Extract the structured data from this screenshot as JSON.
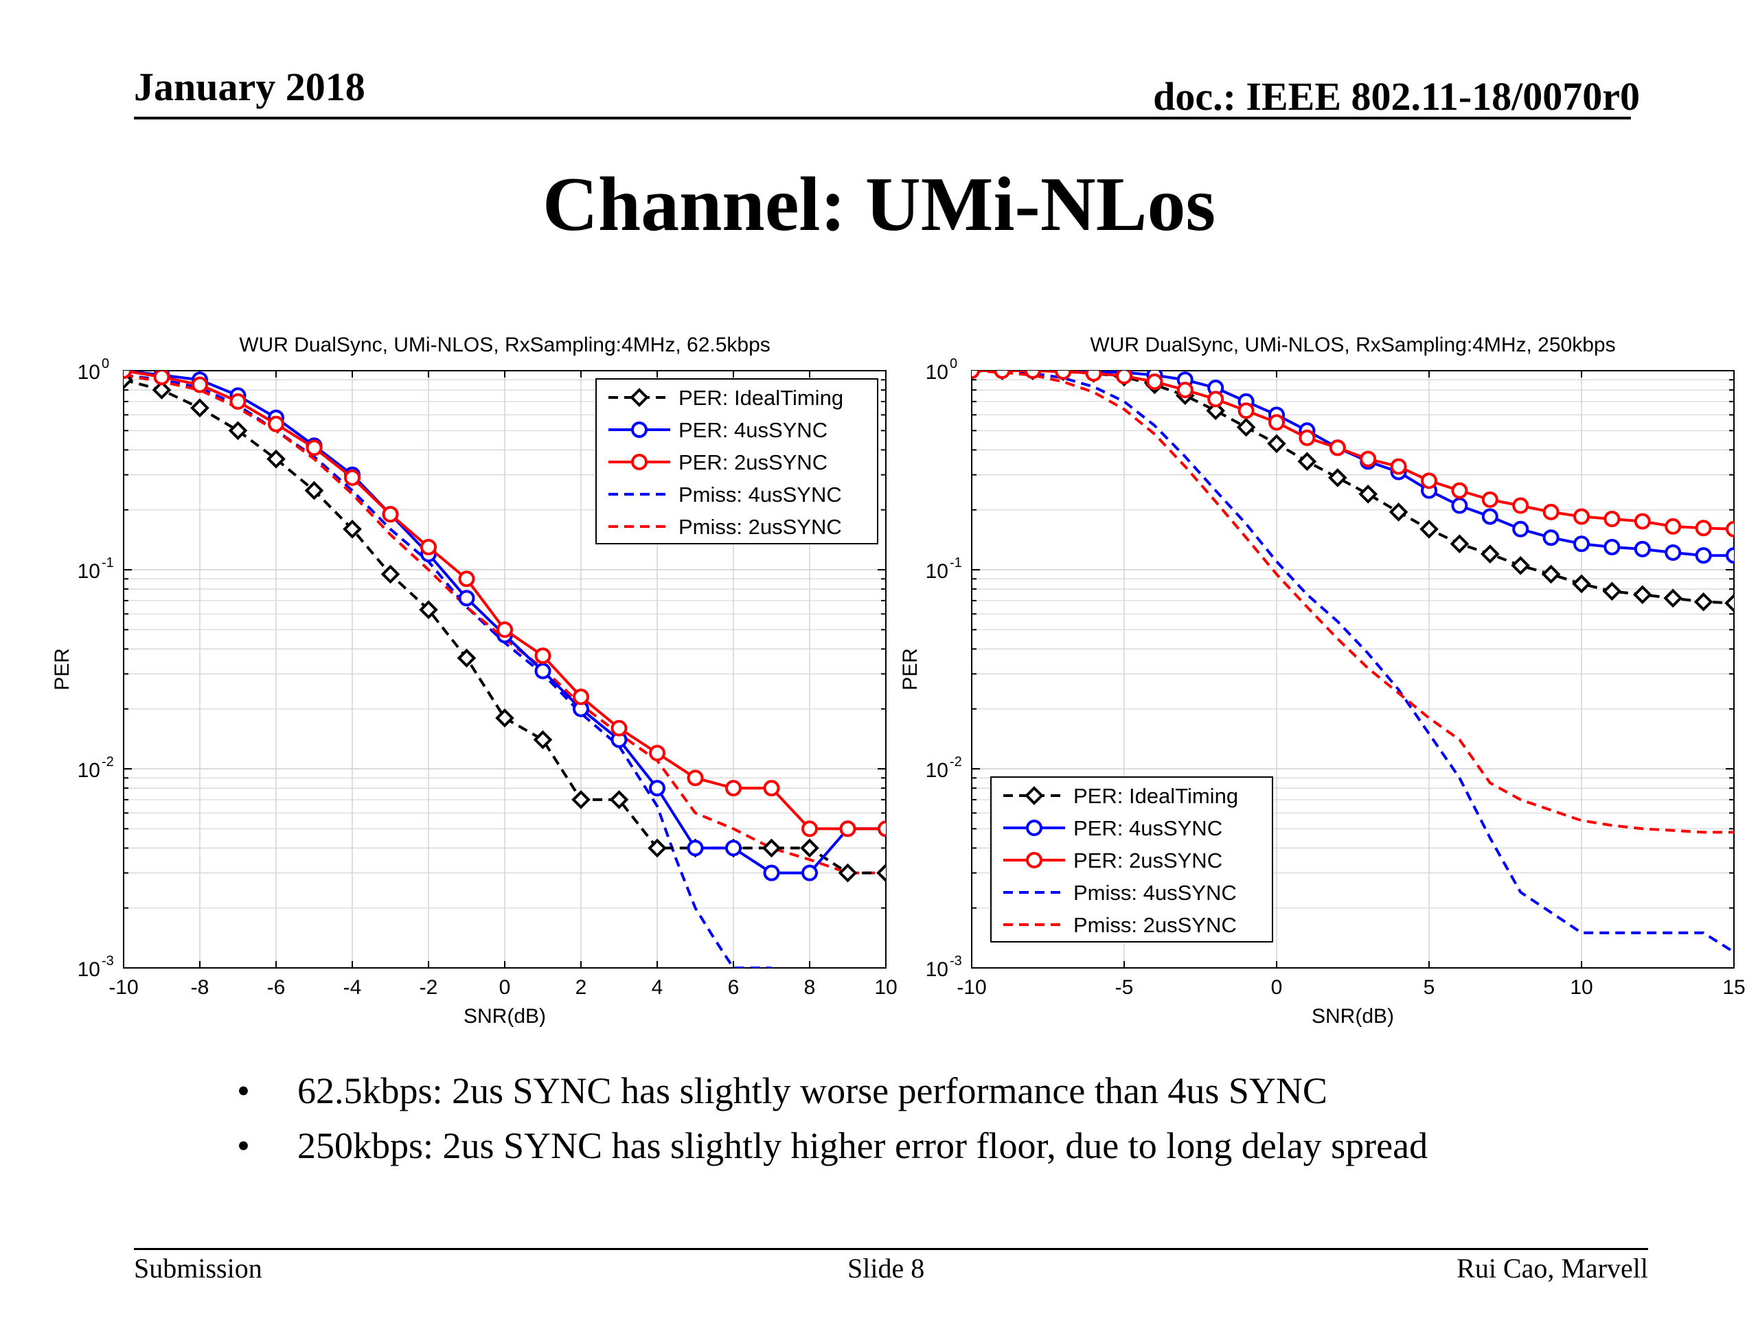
{
  "header": {
    "date": "January 2018",
    "doc": "doc.: IEEE 802.11-18/0070r0"
  },
  "slide_title": "Channel: UMi-NLos",
  "bullets": [
    "62.5kbps: 2us SYNC has slightly worse performance than 4us SYNC",
    "250kbps:  2us SYNC has slightly higher error floor, due to long delay spread"
  ],
  "footer": {
    "left": "Submission",
    "center": "Slide 8",
    "right": "Rui Cao, Marvell"
  },
  "colors": {
    "ideal": "#000000",
    "sync4": "#0000ff",
    "sync2": "#ff0000",
    "grid": "#d4d4d4"
  },
  "chart_data": [
    {
      "type": "line",
      "title": "WUR DualSync, UMi-NLOS, RxSampling:4MHz, 62.5kbps",
      "xlabel": "SNR(dB)",
      "ylabel": "PER",
      "y_scale": "log",
      "xlim": [
        -10,
        10
      ],
      "ylim": [
        0.001,
        1
      ],
      "x_ticks": [
        -10,
        -8,
        -6,
        -4,
        -2,
        0,
        2,
        4,
        6,
        8,
        10
      ],
      "x_tick_labels": [
        "-10",
        "-8",
        "-6",
        "-4",
        "-2",
        "0",
        "2",
        "4",
        "6",
        "8",
        "10"
      ],
      "y_tick_labels": [
        {
          "base": "10",
          "exp": "0"
        },
        {
          "base": "10",
          "exp": "-1"
        },
        {
          "base": "10",
          "exp": "-2"
        },
        {
          "base": "10",
          "exp": "-3"
        }
      ],
      "grid": true,
      "legend_position": "top-right",
      "series": [
        {
          "name": "PER: IdealTiming",
          "color": "#000000",
          "style": "dashed",
          "marker": "diamond",
          "x": [
            -10,
            -9,
            -8,
            -7,
            -6,
            -5,
            -4,
            -3,
            -2,
            -1,
            0,
            1,
            2,
            3,
            4,
            5,
            6,
            7,
            8,
            9,
            10
          ],
          "y": [
            0.9,
            0.8,
            0.65,
            0.5,
            0.36,
            0.25,
            0.16,
            0.095,
            0.063,
            0.036,
            0.018,
            0.014,
            0.007,
            0.007,
            0.004,
            0.004,
            0.004,
            0.004,
            0.004,
            0.003,
            0.003
          ]
        },
        {
          "name": "PER: 4usSYNC",
          "color": "#0000ff",
          "style": "solid",
          "marker": "circle",
          "x": [
            -10,
            -9,
            -8,
            -7,
            -6,
            -5,
            -4,
            -3,
            -2,
            -1,
            0,
            1,
            2,
            3,
            4,
            5,
            6,
            7,
            8,
            9,
            10
          ],
          "y": [
            1.0,
            0.95,
            0.9,
            0.75,
            0.58,
            0.42,
            0.3,
            0.19,
            0.12,
            0.072,
            0.047,
            0.031,
            0.02,
            0.014,
            0.008,
            0.004,
            0.004,
            0.003,
            0.003,
            0.005,
            0.005
          ]
        },
        {
          "name": "PER: 2usSYNC",
          "color": "#ff0000",
          "style": "solid",
          "marker": "circle",
          "x": [
            -10,
            -9,
            -8,
            -7,
            -6,
            -5,
            -4,
            -3,
            -2,
            -1,
            0,
            1,
            2,
            3,
            4,
            5,
            6,
            7,
            8,
            9,
            10
          ],
          "y": [
            1.0,
            0.93,
            0.85,
            0.7,
            0.54,
            0.41,
            0.29,
            0.19,
            0.13,
            0.09,
            0.05,
            0.037,
            0.023,
            0.016,
            0.012,
            0.009,
            0.008,
            0.008,
            0.005,
            0.005,
            0.005
          ]
        },
        {
          "name": "Pmiss: 4usSYNC",
          "color": "#0000ff",
          "style": "dashed",
          "marker": "none",
          "x": [
            -10,
            -9,
            -8,
            -7,
            -6,
            -5,
            -4,
            -3,
            -2,
            -1,
            0,
            1,
            2,
            3,
            4,
            4.5,
            5,
            5.5,
            6,
            6.5,
            7
          ],
          "y": [
            0.95,
            0.9,
            0.82,
            0.67,
            0.5,
            0.37,
            0.25,
            0.16,
            0.11,
            0.065,
            0.043,
            0.03,
            0.019,
            0.013,
            0.0065,
            0.0035,
            0.002,
            0.0014,
            0.001,
            0.001,
            0.001
          ]
        },
        {
          "name": "Pmiss: 2usSYNC",
          "color": "#ff0000",
          "style": "dashed",
          "marker": "none",
          "x": [
            -10,
            -9,
            -8,
            -7,
            -6,
            -5,
            -4,
            -3,
            -2,
            -1,
            0,
            1,
            2,
            3,
            4,
            5,
            6,
            7,
            8,
            9,
            10
          ],
          "y": [
            0.95,
            0.88,
            0.8,
            0.65,
            0.5,
            0.36,
            0.24,
            0.15,
            0.1,
            0.065,
            0.045,
            0.032,
            0.021,
            0.015,
            0.011,
            0.006,
            0.005,
            0.004,
            0.0035,
            0.003,
            0.003
          ]
        }
      ]
    },
    {
      "type": "line",
      "title": "WUR DualSync, UMi-NLOS, RxSampling:4MHz, 250kbps",
      "xlabel": "SNR(dB)",
      "ylabel": "PER",
      "y_scale": "log",
      "xlim": [
        -10,
        15
      ],
      "ylim": [
        0.001,
        1
      ],
      "x_ticks": [
        -10,
        -5,
        0,
        5,
        10,
        15
      ],
      "x_tick_labels": [
        "-10",
        "-5",
        "0",
        "5",
        "10",
        "15"
      ],
      "y_tick_labels": [
        {
          "base": "10",
          "exp": "0"
        },
        {
          "base": "10",
          "exp": "-1"
        },
        {
          "base": "10",
          "exp": "-2"
        },
        {
          "base": "10",
          "exp": "-3"
        }
      ],
      "grid": true,
      "legend_position": "bottom-left",
      "series": [
        {
          "name": "PER: IdealTiming",
          "color": "#000000",
          "style": "dashed",
          "marker": "diamond",
          "x": [
            -10,
            -9,
            -8,
            -7,
            -6,
            -5,
            -4,
            -3,
            -2,
            -1,
            0,
            1,
            2,
            3,
            4,
            5,
            6,
            7,
            8,
            9,
            10,
            11,
            12,
            13,
            14,
            15
          ],
          "y": [
            1.0,
            1.0,
            1.0,
            0.99,
            0.97,
            0.93,
            0.85,
            0.75,
            0.63,
            0.52,
            0.43,
            0.35,
            0.29,
            0.24,
            0.195,
            0.16,
            0.135,
            0.12,
            0.105,
            0.095,
            0.085,
            0.078,
            0.075,
            0.072,
            0.069,
            0.068
          ]
        },
        {
          "name": "PER: 4usSYNC",
          "color": "#0000ff",
          "style": "solid",
          "marker": "circle",
          "x": [
            -10,
            -9,
            -8,
            -7,
            -6,
            -5,
            -4,
            -3,
            -2,
            -1,
            0,
            1,
            2,
            3,
            4,
            5,
            6,
            7,
            8,
            9,
            10,
            11,
            12,
            13,
            14,
            15
          ],
          "y": [
            1.0,
            1.0,
            1.0,
            1.0,
            0.99,
            0.98,
            0.95,
            0.9,
            0.82,
            0.7,
            0.6,
            0.5,
            0.41,
            0.35,
            0.31,
            0.25,
            0.21,
            0.185,
            0.16,
            0.145,
            0.135,
            0.13,
            0.127,
            0.122,
            0.118,
            0.118
          ]
        },
        {
          "name": "PER: 2usSYNC",
          "color": "#ff0000",
          "style": "solid",
          "marker": "circle",
          "x": [
            -10,
            -9,
            -8,
            -7,
            -6,
            -5,
            -4,
            -3,
            -2,
            -1,
            0,
            1,
            2,
            3,
            4,
            5,
            6,
            7,
            8,
            9,
            10,
            11,
            12,
            13,
            14,
            15
          ],
          "y": [
            1.0,
            1.0,
            1.0,
            0.99,
            0.97,
            0.94,
            0.88,
            0.8,
            0.72,
            0.63,
            0.55,
            0.46,
            0.41,
            0.36,
            0.33,
            0.28,
            0.25,
            0.225,
            0.21,
            0.195,
            0.185,
            0.18,
            0.175,
            0.165,
            0.162,
            0.16
          ]
        },
        {
          "name": "Pmiss: 4usSYNC",
          "color": "#0000ff",
          "style": "dashed",
          "marker": "none",
          "x": [
            -10,
            -9,
            -8,
            -7,
            -6,
            -5,
            -4,
            -3,
            -2,
            -1,
            0,
            1,
            2,
            3,
            4,
            5,
            6,
            7,
            8,
            9,
            10,
            11,
            12,
            13,
            14,
            15
          ],
          "y": [
            1.0,
            0.99,
            0.97,
            0.92,
            0.83,
            0.7,
            0.53,
            0.37,
            0.25,
            0.17,
            0.11,
            0.075,
            0.055,
            0.038,
            0.025,
            0.015,
            0.009,
            0.0045,
            0.0024,
            0.0019,
            0.0015,
            0.0015,
            0.0015,
            0.0015,
            0.0015,
            0.0012
          ]
        },
        {
          "name": "Pmiss: 2usSYNC",
          "color": "#ff0000",
          "style": "dashed",
          "marker": "none",
          "x": [
            -10,
            -9,
            -8,
            -7,
            -6,
            -5,
            -4,
            -3,
            -2,
            -1,
            0,
            1,
            2,
            3,
            4,
            5,
            6,
            7,
            8,
            9,
            10,
            11,
            12,
            13,
            14,
            15
          ],
          "y": [
            1.0,
            0.98,
            0.95,
            0.88,
            0.78,
            0.64,
            0.48,
            0.33,
            0.22,
            0.145,
            0.095,
            0.065,
            0.045,
            0.032,
            0.024,
            0.018,
            0.014,
            0.0085,
            0.007,
            0.0062,
            0.0055,
            0.0052,
            0.005,
            0.0049,
            0.0048,
            0.0048
          ]
        }
      ]
    }
  ]
}
